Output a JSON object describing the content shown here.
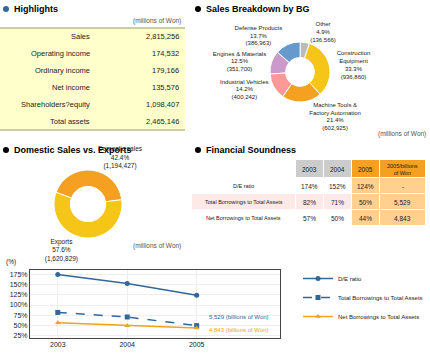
{
  "chart_data": [
    {
      "type": "table",
      "title": "Highlights",
      "title_marker_color": "#336699",
      "unit": "(millions of Won)",
      "color": "#ffffcc",
      "border_color": "#999966",
      "rows": [
        [
          "Sales",
          "2,815,256"
        ],
        [
          "Operating income",
          "174,532"
        ],
        [
          "Ordinary income",
          "179,166"
        ],
        [
          "Net income",
          "135,576"
        ],
        [
          "Shareholders?equity",
          "1,098,407"
        ],
        [
          "Total assets",
          "2,465,146"
        ]
      ]
    },
    {
      "type": "pie",
      "title": "Sales Breakdown by BG",
      "title_marker_color": "#000000",
      "unit": "(millions of Won)",
      "categories": [
        "Construction\nEquipment",
        "Other",
        "Defense Products",
        "Engines & Materials",
        "Industrial Vehicles",
        "Machine Tools &\nFactory Automation"
      ],
      "values": [
        33.3,
        4.9,
        13.7,
        12.5,
        14.2,
        21.4
      ],
      "value_labels": [
        "33.3%",
        "4.9%",
        "13.7%",
        "12.5%",
        "14.2%",
        "21.4%"
      ],
      "amount_labels": [
        "(936,860)",
        "(136,566)",
        "(386,963)",
        "(351,700)",
        "(400,242)",
        "(602,925)"
      ],
      "colors": [
        "#f5c518",
        "#bbbbbb",
        "#6699cc",
        "#cc99cc",
        "#ff9999",
        "#f5a020"
      ]
    },
    {
      "type": "pie",
      "title": "Domestic Sales vs. Exports",
      "title_marker_color": "#000000",
      "unit": "(millions of Won)",
      "categories": [
        "Domestic sales",
        "Exports"
      ],
      "values": [
        42.4,
        57.6
      ],
      "value_labels": [
        "42.4%",
        "57.6%"
      ],
      "amount_labels": [
        "(1,194,427)",
        "(1,620,829)"
      ],
      "colors": [
        "#f5a020",
        "#f5c518"
      ]
    },
    {
      "type": "table",
      "title": "Financial Soundness",
      "title_marker_color": "#000000",
      "columns": [
        null,
        "2003",
        "2004",
        "2005",
        "2005/billions\nof Won"
      ],
      "header_colors": [
        "#ffffff",
        "#cccccc",
        "#cccccc",
        "#f5a020",
        "#f5a020"
      ],
      "row_colors": [
        "#ffffff",
        "#ffe8e8",
        "#ffffff"
      ],
      "highlight_color": "#ffd090",
      "rows": [
        [
          "D/E ratio",
          "174%",
          "152%",
          "124%",
          "-"
        ],
        [
          "Total Borrowings to Total Assets",
          "82%",
          "71%",
          "50%",
          "5,529"
        ],
        [
          "Net Borrowings to Total Assets",
          "57%",
          "50%",
          "44%",
          "4,843"
        ]
      ]
    },
    {
      "type": "line",
      "x": [
        2003,
        2004,
        2005
      ],
      "xlim": [
        2002.6,
        2006.2
      ],
      "xticks": [
        2003,
        2004,
        2005
      ],
      "ylim": [
        20,
        185
      ],
      "yticks": [
        {
          "value": 25,
          "label": "25%"
        },
        {
          "value": 50,
          "label": "50%"
        },
        {
          "value": 75,
          "label": "75%"
        },
        {
          "value": 100,
          "label": "100%"
        },
        {
          "value": 125,
          "label": "125%"
        },
        {
          "value": 150,
          "label": "150%"
        },
        {
          "value": 175,
          "label": "175%"
        }
      ],
      "ylabel": "(%)",
      "grid": true,
      "legend": "upper right",
      "series": [
        {
          "name": "D/E ratio",
          "color": "#336699",
          "marker": "circle",
          "line_style": "solid",
          "values": [
            174,
            152,
            124
          ]
        },
        {
          "name": "Total Borrowings to Total Assets",
          "color": "#336699",
          "marker": "square",
          "line_style": "dash",
          "values": [
            82,
            71,
            50
          ]
        },
        {
          "name": "Net Borrowings to Total Assets",
          "color": "#f5a020",
          "marker": "triangle-up",
          "line_style": "solid",
          "values": [
            57,
            50,
            44
          ]
        }
      ],
      "annotations": [
        {
          "text": "4,843 (billions of Won)",
          "x": 2005.15,
          "y": 52,
          "color": "#f5a020"
        },
        {
          "text": "5,529 (billions of Won)",
          "x": 2005.15,
          "y": 58,
          "color": "#336699"
        }
      ]
    }
  ]
}
